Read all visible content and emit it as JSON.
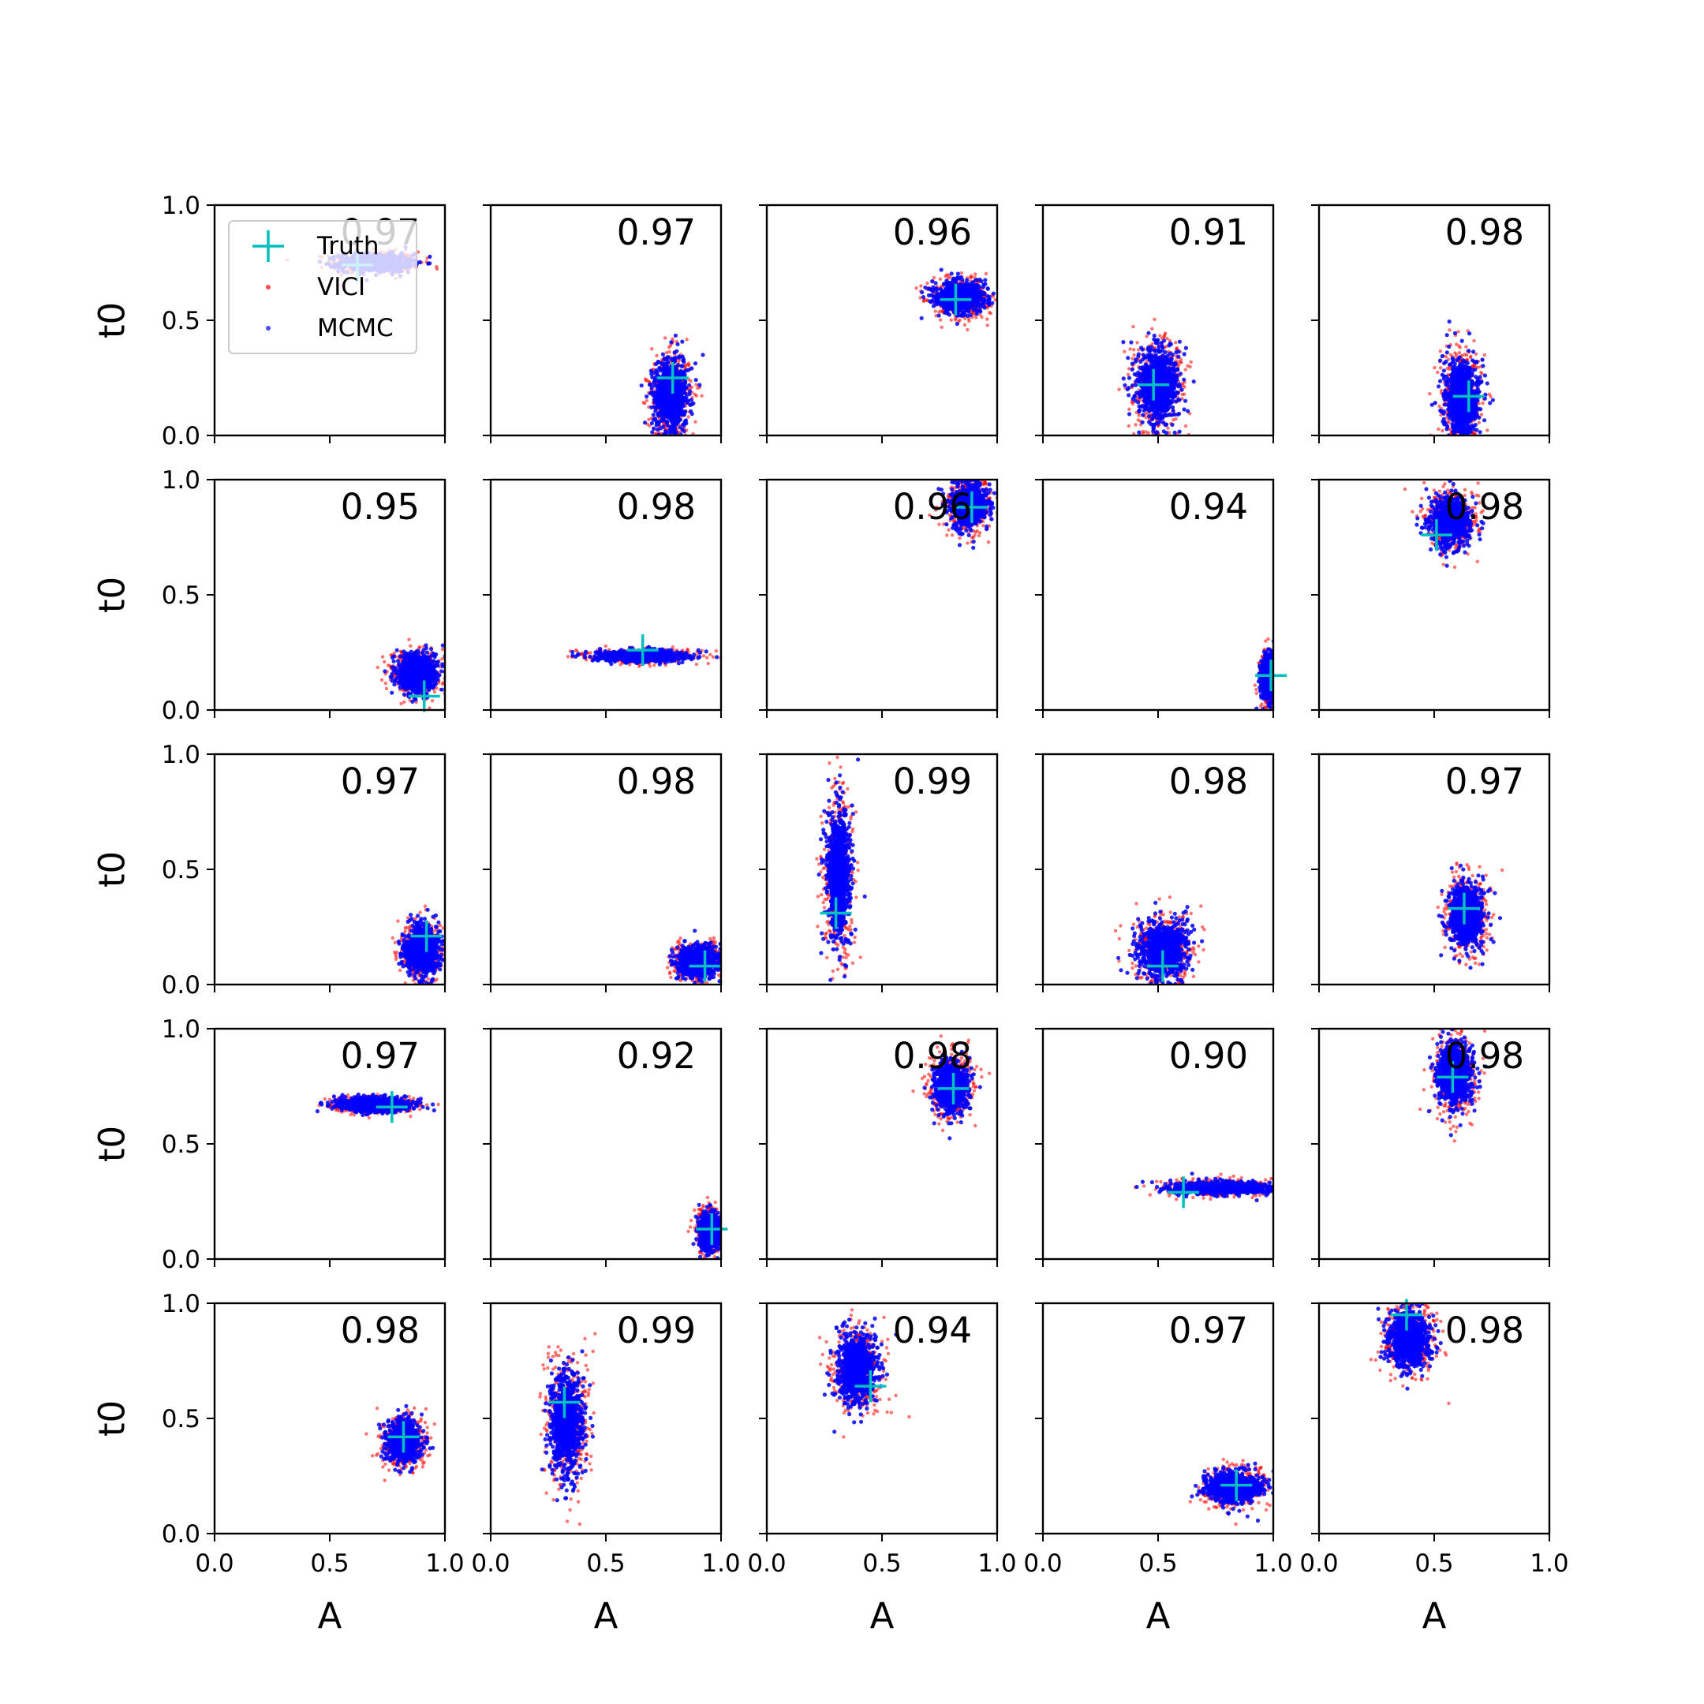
{
  "chart_data": {
    "type": "scatter",
    "grid_rows": 5,
    "grid_cols": 5,
    "xlabel": "A",
    "ylabel": "t0",
    "xlim": [
      0,
      1
    ],
    "ylim": [
      0,
      1
    ],
    "xticks": [
      "0.0",
      "0.5",
      "1.0"
    ],
    "yticks": [
      "0.0",
      "0.5",
      "1.0"
    ],
    "grid": false,
    "legend": {
      "placement": "upper-left of first panel",
      "entries": [
        {
          "label": "Truth",
          "marker": "plus",
          "color": "#00bfbf"
        },
        {
          "label": "VICI",
          "marker": "dot",
          "color": "#ff0000"
        },
        {
          "label": "MCMC",
          "marker": "dot",
          "color": "#0000ff"
        }
      ]
    },
    "colors": {
      "vici": "#ff0000",
      "mcmc": "#0000ff",
      "truth": "#00bfbf"
    },
    "panels": [
      {
        "overlap": "0.97",
        "truth": [
          0.62,
          0.74
        ],
        "cloud": {
          "center": [
            0.7,
            0.75
          ],
          "spread": [
            0.1,
            0.025
          ]
        }
      },
      {
        "overlap": "0.97",
        "truth": [
          0.79,
          0.25
        ],
        "cloud": {
          "center": [
            0.78,
            0.18
          ],
          "spread": [
            0.05,
            0.1
          ],
          "floor": 0.0
        }
      },
      {
        "overlap": "0.96",
        "truth": [
          0.82,
          0.59
        ],
        "cloud": {
          "center": [
            0.84,
            0.6
          ],
          "spread": [
            0.07,
            0.045
          ]
        }
      },
      {
        "overlap": "0.91",
        "truth": [
          0.48,
          0.22
        ],
        "cloud": {
          "center": [
            0.5,
            0.22
          ],
          "spread": [
            0.06,
            0.11
          ],
          "floor": 0.0
        }
      },
      {
        "overlap": "0.98",
        "truth": [
          0.65,
          0.17
        ],
        "cloud": {
          "center": [
            0.62,
            0.17
          ],
          "spread": [
            0.05,
            0.11
          ],
          "floor": 0.0
        }
      },
      {
        "overlap": "0.95",
        "truth": [
          0.91,
          0.06
        ],
        "cloud": {
          "center": [
            0.88,
            0.16
          ],
          "spread": [
            0.06,
            0.055
          ],
          "floor": 0.0
        }
      },
      {
        "overlap": "0.98",
        "truth": [
          0.66,
          0.26
        ],
        "cloud": {
          "center": [
            0.65,
            0.235
          ],
          "spread": [
            0.13,
            0.016
          ]
        }
      },
      {
        "overlap": "0.96",
        "truth": [
          0.89,
          0.88
        ],
        "cloud": {
          "center": [
            0.88,
            0.89
          ],
          "spread": [
            0.05,
            0.06
          ],
          "ceil": 1.0
        }
      },
      {
        "overlap": "0.94",
        "truth": [
          0.99,
          0.15
        ],
        "cloud": {
          "center": [
            0.98,
            0.14
          ],
          "spread": [
            0.02,
            0.06
          ],
          "floor": 0.0
        }
      },
      {
        "overlap": "0.98",
        "truth": [
          0.51,
          0.76
        ],
        "cloud": {
          "center": [
            0.57,
            0.82
          ],
          "spread": [
            0.06,
            0.07
          ],
          "ceil": 1.0
        }
      },
      {
        "overlap": "0.97",
        "truth": [
          0.92,
          0.21
        ],
        "cloud": {
          "center": [
            0.9,
            0.15
          ],
          "spread": [
            0.05,
            0.07
          ],
          "floor": 0.0
        }
      },
      {
        "overlap": "0.98",
        "truth": [
          0.93,
          0.08
        ],
        "cloud": {
          "center": [
            0.9,
            0.1
          ],
          "spread": [
            0.06,
            0.045
          ],
          "floor": 0.0
        }
      },
      {
        "overlap": "0.99",
        "truth": [
          0.3,
          0.31
        ],
        "cloud": {
          "center": [
            0.31,
            0.48
          ],
          "spread": [
            0.035,
            0.2
          ]
        }
      },
      {
        "overlap": "0.98",
        "truth": [
          0.52,
          0.08
        ],
        "cloud": {
          "center": [
            0.52,
            0.15
          ],
          "spread": [
            0.07,
            0.08
          ],
          "floor": 0.0
        }
      },
      {
        "overlap": "0.97",
        "truth": [
          0.63,
          0.33
        ],
        "cloud": {
          "center": [
            0.64,
            0.3
          ],
          "spread": [
            0.05,
            0.09
          ]
        }
      },
      {
        "overlap": "0.97",
        "truth": [
          0.77,
          0.66
        ],
        "cloud": {
          "center": [
            0.69,
            0.67
          ],
          "spread": [
            0.1,
            0.02
          ]
        }
      },
      {
        "overlap": "0.92",
        "truth": [
          0.96,
          0.13
        ],
        "cloud": {
          "center": [
            0.95,
            0.12
          ],
          "spread": [
            0.03,
            0.05
          ],
          "floor": 0.0
        }
      },
      {
        "overlap": "0.98",
        "truth": [
          0.81,
          0.74
        ],
        "cloud": {
          "center": [
            0.8,
            0.75
          ],
          "spread": [
            0.05,
            0.07
          ]
        }
      },
      {
        "overlap": "0.90",
        "truth": [
          0.61,
          0.29
        ],
        "cloud": {
          "center": [
            0.76,
            0.31
          ],
          "spread": [
            0.14,
            0.018
          ]
        }
      },
      {
        "overlap": "0.98",
        "truth": [
          0.58,
          0.79
        ],
        "cloud": {
          "center": [
            0.59,
            0.8
          ],
          "spread": [
            0.05,
            0.09
          ],
          "ceil": 1.0
        }
      },
      {
        "overlap": "0.98",
        "truth": [
          0.82,
          0.42
        ],
        "cloud": {
          "center": [
            0.82,
            0.4
          ],
          "spread": [
            0.05,
            0.06
          ]
        }
      },
      {
        "overlap": "0.99",
        "truth": [
          0.32,
          0.57
        ],
        "cloud": {
          "center": [
            0.33,
            0.48
          ],
          "spread": [
            0.05,
            0.15
          ]
        }
      },
      {
        "overlap": "0.94",
        "truth": [
          0.45,
          0.64
        ],
        "cloud": {
          "center": [
            0.39,
            0.72
          ],
          "spread": [
            0.06,
            0.1
          ]
        }
      },
      {
        "overlap": "0.97",
        "truth": [
          0.84,
          0.21
        ],
        "cloud": {
          "center": [
            0.83,
            0.2
          ],
          "spread": [
            0.08,
            0.045
          ]
        }
      },
      {
        "overlap": "0.98",
        "truth": [
          0.38,
          0.95
        ],
        "cloud": {
          "center": [
            0.39,
            0.84
          ],
          "spread": [
            0.06,
            0.08
          ],
          "ceil": 1.0
        }
      }
    ]
  }
}
